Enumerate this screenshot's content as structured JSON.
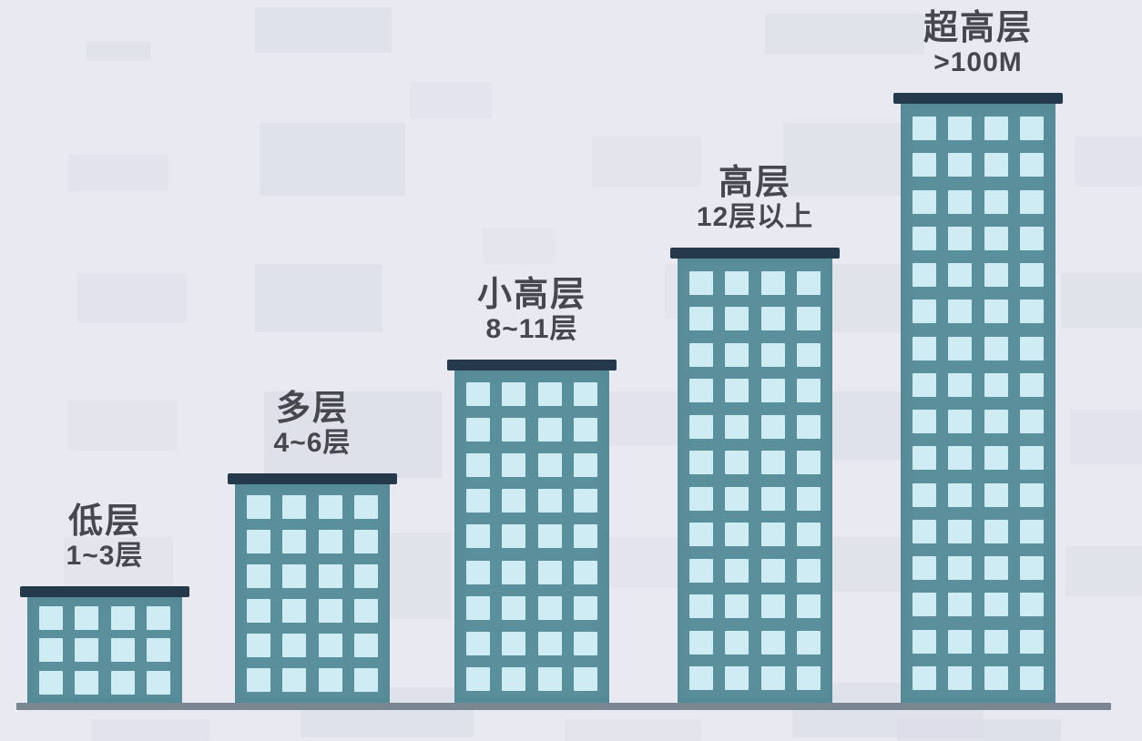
{
  "title": null,
  "buildings": [
    {
      "id": "low-rise",
      "label": "低层",
      "sublabel": "1~3层",
      "floors": 3,
      "window_columns": 4
    },
    {
      "id": "multi-story",
      "label": "多层",
      "sublabel": "4~6层",
      "floors": 6,
      "window_columns": 4
    },
    {
      "id": "small-high-rise",
      "label": "小高层",
      "sublabel": "8~11层",
      "floors": 9,
      "window_columns": 4
    },
    {
      "id": "high-rise",
      "label": "高层",
      "sublabel": "12层以上",
      "floors": 12,
      "window_columns": 4
    },
    {
      "id": "super-high-rise",
      "label": "超高层",
      "sublabel": ">100M",
      "floors": 16,
      "window_columns": 4
    }
  ],
  "colors": {
    "background": "#e9eaf1",
    "background_pattern": "#d9dbe6",
    "building_body": "#5a8f9c",
    "building_roof": "#24394a",
    "window": "#cfecf4",
    "ground": "#7b8693",
    "label_text": "#47484d"
  },
  "chart_data": {
    "type": "bar",
    "categories": [
      "低层",
      "多层",
      "小高层",
      "高层",
      "超高层"
    ],
    "series": [
      {
        "name": "window_rows_depicted",
        "values": [
          3,
          6,
          9,
          12,
          16
        ]
      }
    ],
    "annotations": [
      "1~3层",
      "4~6层",
      "8~11层",
      "12层以上",
      ">100M"
    ],
    "title": "",
    "xlabel": "",
    "ylabel": "",
    "legend": "none",
    "grid": false,
    "note": "infographic of building height classes drawn as buildings of increasing height"
  }
}
